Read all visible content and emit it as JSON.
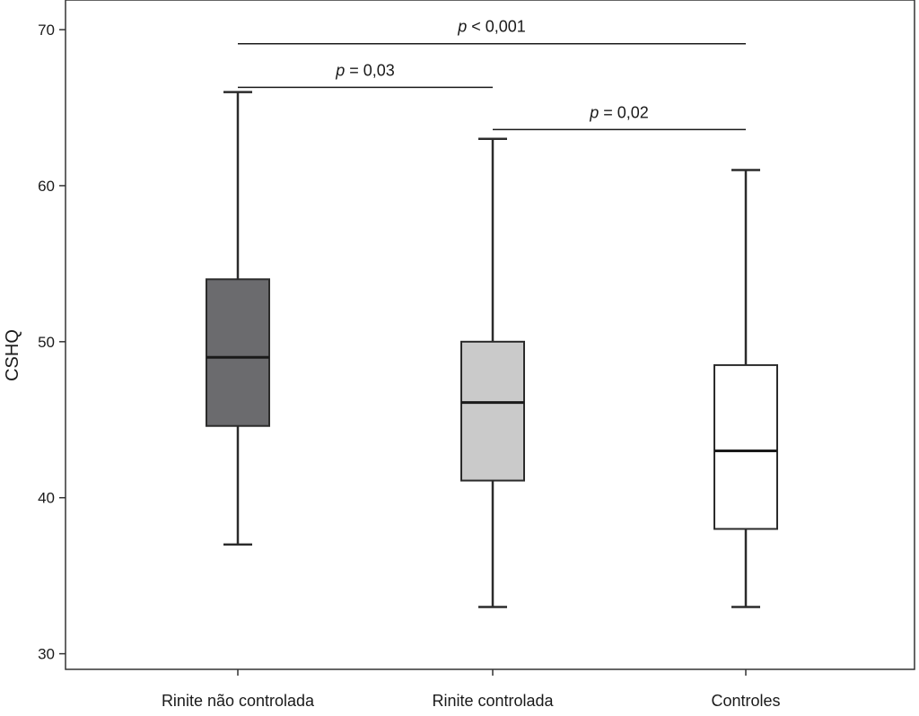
{
  "chart_data": {
    "type": "box",
    "ylabel": "CSHQ",
    "xlabel": "",
    "ylim": [
      29,
      71.9
    ],
    "yticks": [
      30,
      40,
      50,
      60,
      70
    ],
    "categories": [
      "Rinite não controlada",
      "Rinite controlada",
      "Controles"
    ],
    "boxes": [
      {
        "category": "Rinite não controlada",
        "min": 37,
        "q1": 44.6,
        "median": 49,
        "q3": 54,
        "max": 66,
        "fill": "#6b6b6e"
      },
      {
        "category": "Rinite controlada",
        "min": 33,
        "q1": 41.1,
        "median": 46.1,
        "q3": 50,
        "max": 63,
        "fill": "#cacaca"
      },
      {
        "category": "Controles",
        "min": 33,
        "q1": 38,
        "median": 43,
        "q3": 48.5,
        "max": 61,
        "fill": "#ffffff"
      }
    ],
    "comparisons": [
      {
        "from": 0,
        "to": 2,
        "y": 69.1,
        "prefix": "p",
        "text": " < 0,001"
      },
      {
        "from": 0,
        "to": 1,
        "y": 66.3,
        "prefix": "p",
        "text": " = 0,03"
      },
      {
        "from": 1,
        "to": 2,
        "y": 63.6,
        "prefix": "p",
        "text": " = 0,02"
      }
    ]
  }
}
